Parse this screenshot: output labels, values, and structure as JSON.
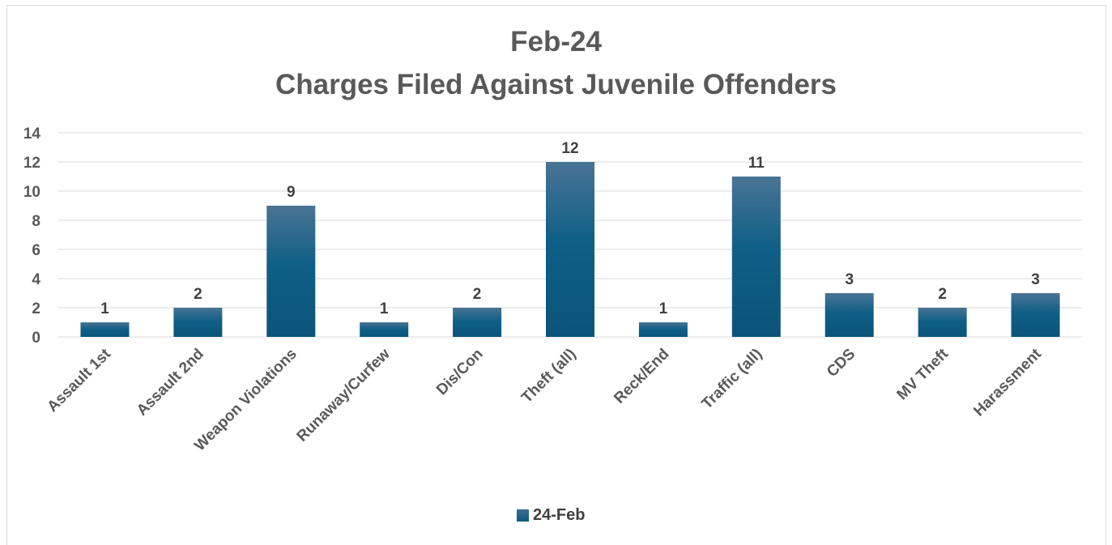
{
  "chart_data": {
    "type": "bar",
    "title": "Feb-24",
    "subtitle": "Charges Filed Against Juvenile Offenders",
    "categories": [
      "Assault 1st",
      "Assault 2nd",
      "Weapon Violations",
      "Runaway/Curfew",
      "Dis/Con",
      "Theft (all)",
      "Reck/End",
      "Traffic (all)",
      "CDS",
      "MV Theft",
      "Harassment"
    ],
    "series": [
      {
        "name": "24-Feb",
        "values": [
          1,
          2,
          9,
          1,
          2,
          12,
          1,
          11,
          3,
          2,
          3
        ]
      }
    ],
    "ylim": [
      0,
      14
    ],
    "yticks": [
      0,
      2,
      4,
      6,
      8,
      10,
      12,
      14
    ],
    "grid": true,
    "data_labels": true,
    "legend": "bottom",
    "colors": {
      "bar_top": "#4a7494",
      "bar_bottom": "#0b5479",
      "text": "#595959",
      "grid": "#d9d9d9"
    }
  }
}
